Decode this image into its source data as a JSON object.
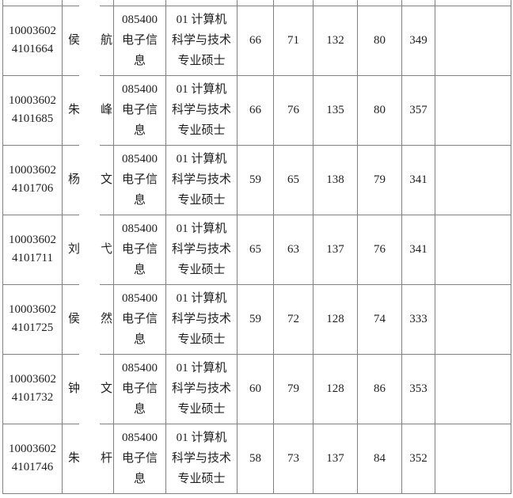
{
  "colors": {
    "background": "#ffffff",
    "border": "#808080",
    "text": "#1f1f1f",
    "redaction": "#ffffff"
  },
  "table": {
    "shared": {
      "discipline_lines": [
        "085400",
        "电子信",
        "息"
      ],
      "discipline_full": "085400电子信息",
      "major_lines": [
        "01 计算机",
        "科学与技术",
        "专业硕士"
      ],
      "major_full": "01 计算机科学与技术专业硕士"
    },
    "rows": [
      {
        "id_line1": "10003602",
        "id_line2": "4101664",
        "name_first": "侯",
        "name_last": "航",
        "s1": "66",
        "s2": "71",
        "s3": "132",
        "s4": "80",
        "total": "349",
        "remark": ""
      },
      {
        "id_line1": "10003602",
        "id_line2": "4101685",
        "name_first": "朱",
        "name_last": "峰",
        "s1": "66",
        "s2": "76",
        "s3": "135",
        "s4": "80",
        "total": "357",
        "remark": ""
      },
      {
        "id_line1": "10003602",
        "id_line2": "4101706",
        "name_first": "杨",
        "name_last": "文",
        "s1": "59",
        "s2": "65",
        "s3": "138",
        "s4": "79",
        "total": "341",
        "remark": ""
      },
      {
        "id_line1": "10003602",
        "id_line2": "4101711",
        "name_first": "刘",
        "name_last": "弋",
        "s1": "65",
        "s2": "63",
        "s3": "137",
        "s4": "76",
        "total": "341",
        "remark": ""
      },
      {
        "id_line1": "10003602",
        "id_line2": "4101725",
        "name_first": "侯",
        "name_last": "然",
        "s1": "59",
        "s2": "72",
        "s3": "128",
        "s4": "74",
        "total": "333",
        "remark": ""
      },
      {
        "id_line1": "10003602",
        "id_line2": "4101732",
        "name_first": "钟",
        "name_last": "文",
        "s1": "60",
        "s2": "79",
        "s3": "128",
        "s4": "86",
        "total": "353",
        "remark": ""
      },
      {
        "id_line1": "10003602",
        "id_line2": "4101746",
        "name_first": "朱",
        "name_last": "杆",
        "s1": "58",
        "s2": "73",
        "s3": "137",
        "s4": "84",
        "total": "352",
        "remark": ""
      }
    ]
  }
}
